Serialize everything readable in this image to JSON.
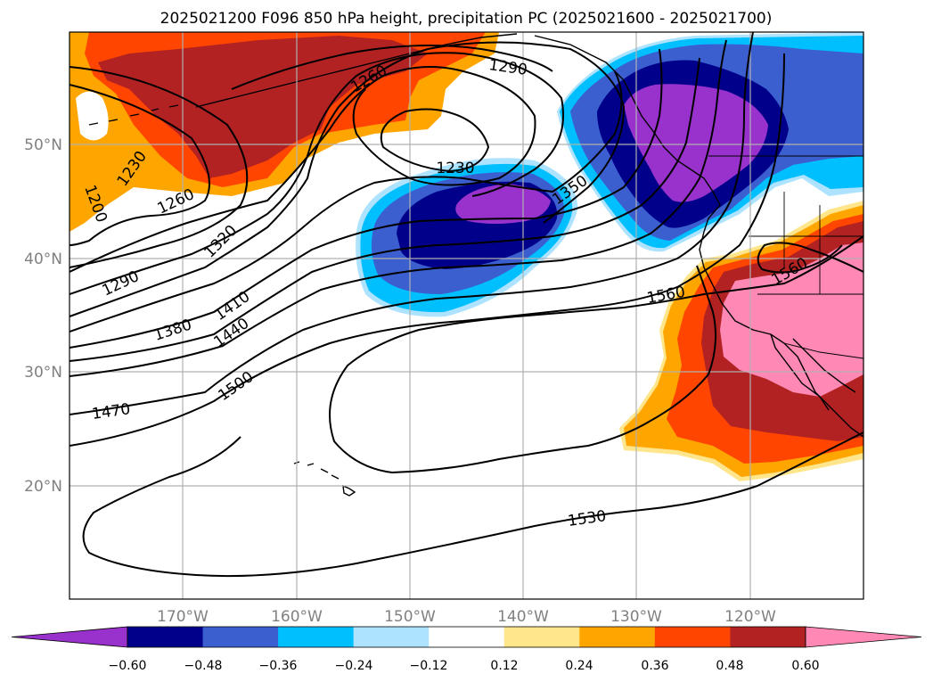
{
  "map": {
    "title": "2025021200 F096 850 hPa height, precipitation PC (2025021600 - 2025021700)",
    "lon_ticks": [
      "170°W",
      "160°W",
      "150°W",
      "140°W",
      "130°W",
      "120°W"
    ],
    "lat_ticks": [
      "50°N",
      "40°N",
      "30°N",
      "20°N"
    ],
    "contour_labels": [
      "1290",
      "1260",
      "1230",
      "1200",
      "1230",
      "1260",
      "1320",
      "1290",
      "1350",
      "1410",
      "1380",
      "1440",
      "1500",
      "1470",
      "1560",
      "1560",
      "1530"
    ]
  },
  "colorbar": {
    "labels": [
      "−0.60",
      "−0.48",
      "−0.36",
      "−0.24",
      "−0.12",
      "0.12",
      "0.24",
      "0.36",
      "0.48",
      "0.60"
    ],
    "colors": [
      "#9932CC",
      "#00008B",
      "#3B5FCF",
      "#00BFFF",
      "#ADE3FF",
      "#FFFFFF",
      "#FFE68C",
      "#FFA500",
      "#FF4500",
      "#B22222",
      "#FF88B4"
    ]
  },
  "colors": {
    "purple": "#9932CC",
    "navy": "#00008B",
    "royal": "#3B5FCF",
    "sky": "#00BFFF",
    "yellow": "#FFE68C",
    "orange": "#FFA500",
    "redorange": "#FF4500",
    "brick": "#B22222",
    "pink": "#FF88B4"
  }
}
